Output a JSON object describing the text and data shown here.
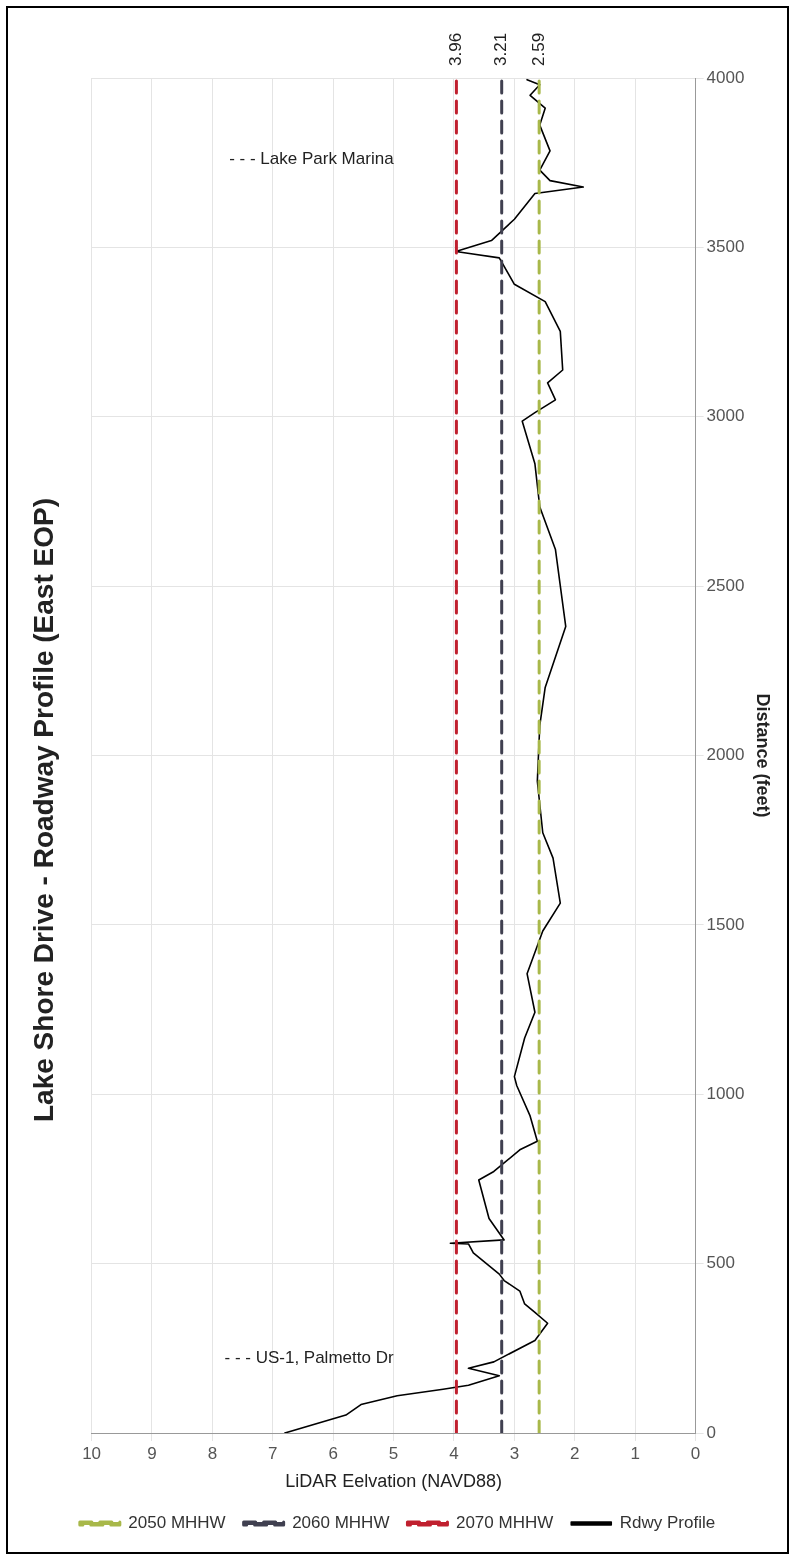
{
  "chart_data": {
    "type": "line",
    "title": "Lake Shore Drive - Roadway Profile (East EOP)",
    "xlabel": "LiDAR Eelvation (NAVD88)",
    "ylabel": "Distance (feet)",
    "xlim": [
      10,
      0
    ],
    "ylim": [
      0,
      4000
    ],
    "xticks": [
      0,
      1,
      2,
      3,
      4,
      5,
      6,
      7,
      8,
      9,
      10
    ],
    "yticks": [
      0,
      500,
      1000,
      1500,
      2000,
      2500,
      3000,
      3500,
      4000
    ],
    "grid": true,
    "legend": "bottom",
    "marker": "none",
    "series": [
      {
        "name": "2050 MHHW",
        "line_style": "dashed",
        "color": "#a8b84a",
        "x": [
          2.59,
          2.59
        ],
        "values": [
          0,
          4000
        ]
      },
      {
        "name": "2060 MHHW",
        "line_style": "dashed",
        "color": "#404050",
        "x": [
          3.21,
          3.21
        ],
        "values": [
          0,
          4000
        ]
      },
      {
        "name": "2070 MHHW",
        "line_style": "dashed",
        "color": "#c0202f",
        "x": [
          3.96,
          3.96
        ],
        "values": [
          0,
          4000
        ]
      },
      {
        "name": "Rdwy Profile",
        "line_style": "solid",
        "color": "#000000",
        "x": [
          6.8,
          5.79,
          5.54,
          4.94,
          4.18,
          3.76,
          3.25,
          3.76,
          3.34,
          2.66,
          2.45,
          2.66,
          2.83,
          2.91,
          3.17,
          3.25,
          3.68,
          3.76,
          4.06,
          3.17,
          3.42,
          3.59,
          3.34,
          2.91,
          2.62,
          2.74,
          2.96,
          3.0,
          2.83,
          2.66,
          2.79,
          2.53,
          2.24,
          2.36,
          2.53,
          2.62,
          2.58,
          2.49,
          2.15,
          2.32,
          2.58,
          2.66,
          2.87,
          2.66,
          2.32,
          2.45,
          2.2,
          2.24,
          2.49,
          3.0,
          3.25,
          3.97,
          3.38,
          3.0,
          2.66,
          1.86,
          2.41,
          2.58,
          2.41,
          2.58,
          2.49,
          2.74,
          2.58,
          2.79
        ],
        "values": [
          0,
          53,
          84,
          110,
          129,
          141,
          169,
          191,
          210,
          273,
          324,
          356,
          381,
          419,
          450,
          469,
          532,
          558,
          560,
          570,
          633,
          747,
          772,
          836,
          861,
          936,
          1025,
          1052,
          1166,
          1242,
          1356,
          1482,
          1564,
          1697,
          1772,
          1924,
          2088,
          2201,
          2381,
          2608,
          2734,
          2861,
          2987,
          3012,
          3050,
          3100,
          3138,
          3252,
          3340,
          3391,
          3469,
          3488,
          3520,
          3583,
          3659,
          3678,
          3697,
          3728,
          3785,
          3861,
          3911,
          3949,
          3980,
          3995
        ]
      }
    ],
    "annotations": [
      "- - - US-1, Palmetto Dr",
      "- - - Lake Park Marina",
      {
        "text": "3.96",
        "x": 3.96,
        "y": 4000
      },
      {
        "text": "3.21",
        "x": 3.21,
        "y": 4000
      },
      {
        "text": "2.59",
        "x": 2.59,
        "y": 4000
      }
    ]
  }
}
